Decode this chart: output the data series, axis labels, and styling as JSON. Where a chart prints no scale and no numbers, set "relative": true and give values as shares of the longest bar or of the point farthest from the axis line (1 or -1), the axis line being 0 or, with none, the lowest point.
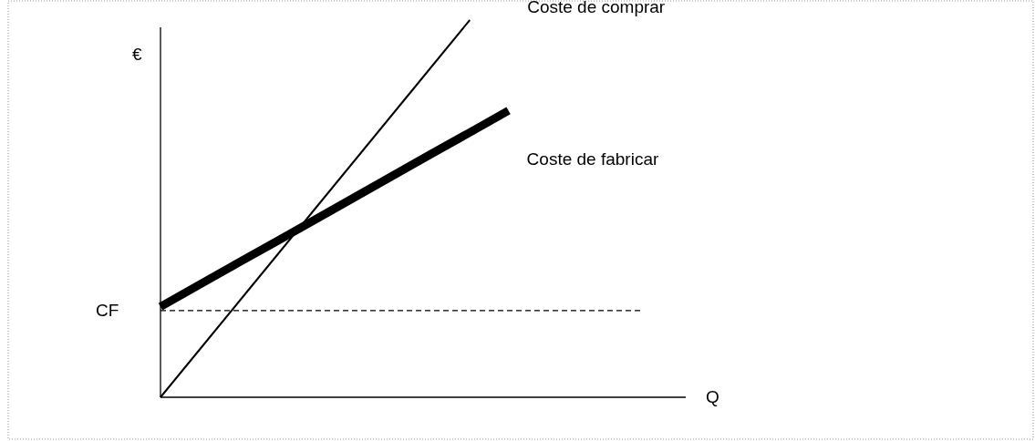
{
  "chart_data": {
    "type": "line",
    "relative": true,
    "ylabel": "€",
    "annotations": [
      "Q"
    ],
    "categories": [
      null,
      null,
      null,
      null,
      null,
      null,
      null,
      null,
      null,
      null
    ],
    "series": [
      {
        "name": "Coste de comprar",
        "color": "#000000",
        "values": [
          0,
          0.125,
          0.25,
          0.375,
          0.5,
          0.625,
          0.75,
          0.875,
          1,
          null
        ]
      },
      {
        "name": "Coste de fabricar",
        "color": "#000000",
        "values": [
          0.24,
          0.298,
          0.356,
          0.413,
          0.471,
          0.529,
          0.587,
          0.645,
          0.702,
          0.76
        ]
      }
    ],
    "ref_lines": [
      {
        "axis": "y",
        "value": 0.23,
        "label": "CF",
        "line_style": "dashed",
        "color": "#000000"
      }
    ],
    "legend": false,
    "grid": false,
    "marker": "none",
    "line_style": "solid"
  }
}
